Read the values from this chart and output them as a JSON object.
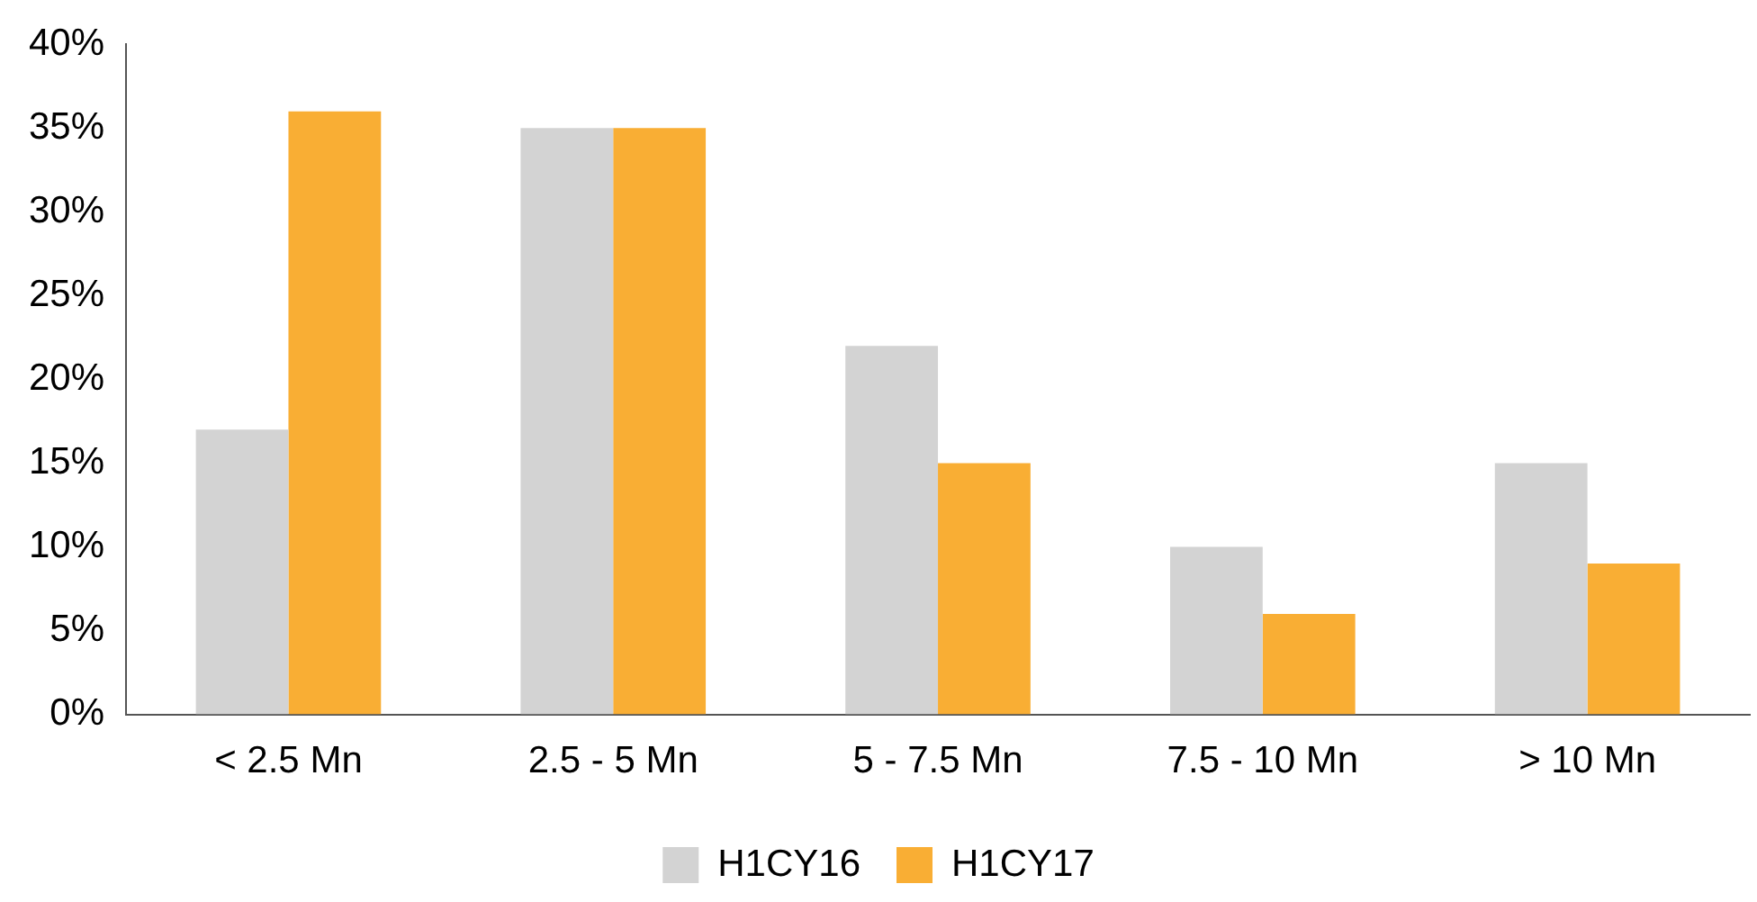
{
  "chart_data": {
    "type": "bar",
    "categories": [
      "< 2.5 Mn",
      "2.5 - 5 Mn",
      "5 - 7.5 Mn",
      "7.5 - 10 Mn",
      "> 10 Mn"
    ],
    "series": [
      {
        "name": "H1CY16",
        "color": "#d3d3d3",
        "values": [
          17,
          35,
          22,
          10,
          15
        ]
      },
      {
        "name": "H1CY17",
        "color": "#f9ae34",
        "values": [
          36,
          35,
          15,
          6,
          9
        ]
      }
    ],
    "ylim": [
      0,
      40
    ],
    "yticks": [
      {
        "value": 0,
        "label": "0%"
      },
      {
        "value": 5,
        "label": "5%"
      },
      {
        "value": 10,
        "label": "10%"
      },
      {
        "value": 15,
        "label": "15%"
      },
      {
        "value": 20,
        "label": "20%"
      },
      {
        "value": 25,
        "label": "25%"
      },
      {
        "value": 30,
        "label": "30%"
      },
      {
        "value": 35,
        "label": "35%"
      },
      {
        "value": 40,
        "label": "40%"
      }
    ],
    "grid": false,
    "legend": "bottom"
  }
}
